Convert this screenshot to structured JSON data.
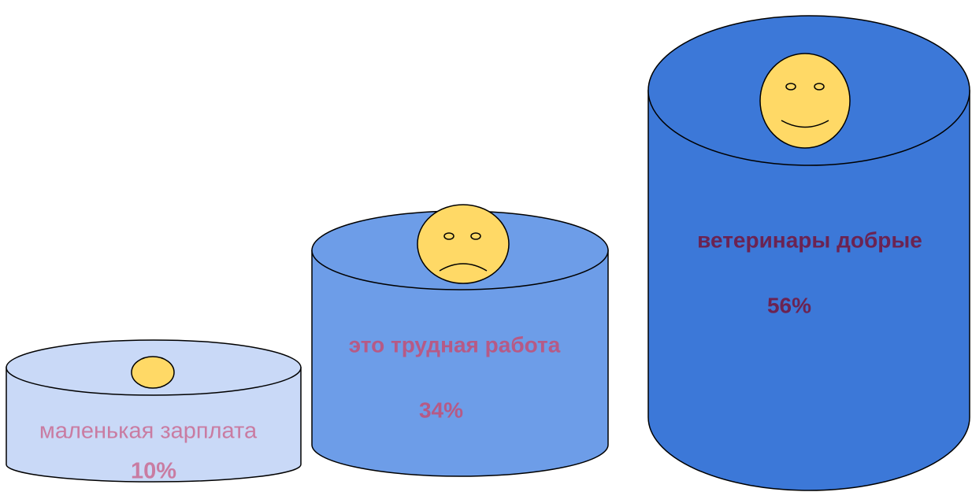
{
  "items": [
    {
      "label": "маленькая зарплата",
      "value": "10%"
    },
    {
      "label": "это трудная работа",
      "value": "34%"
    },
    {
      "label": "ветеринары добрые",
      "value": "56%"
    }
  ]
}
